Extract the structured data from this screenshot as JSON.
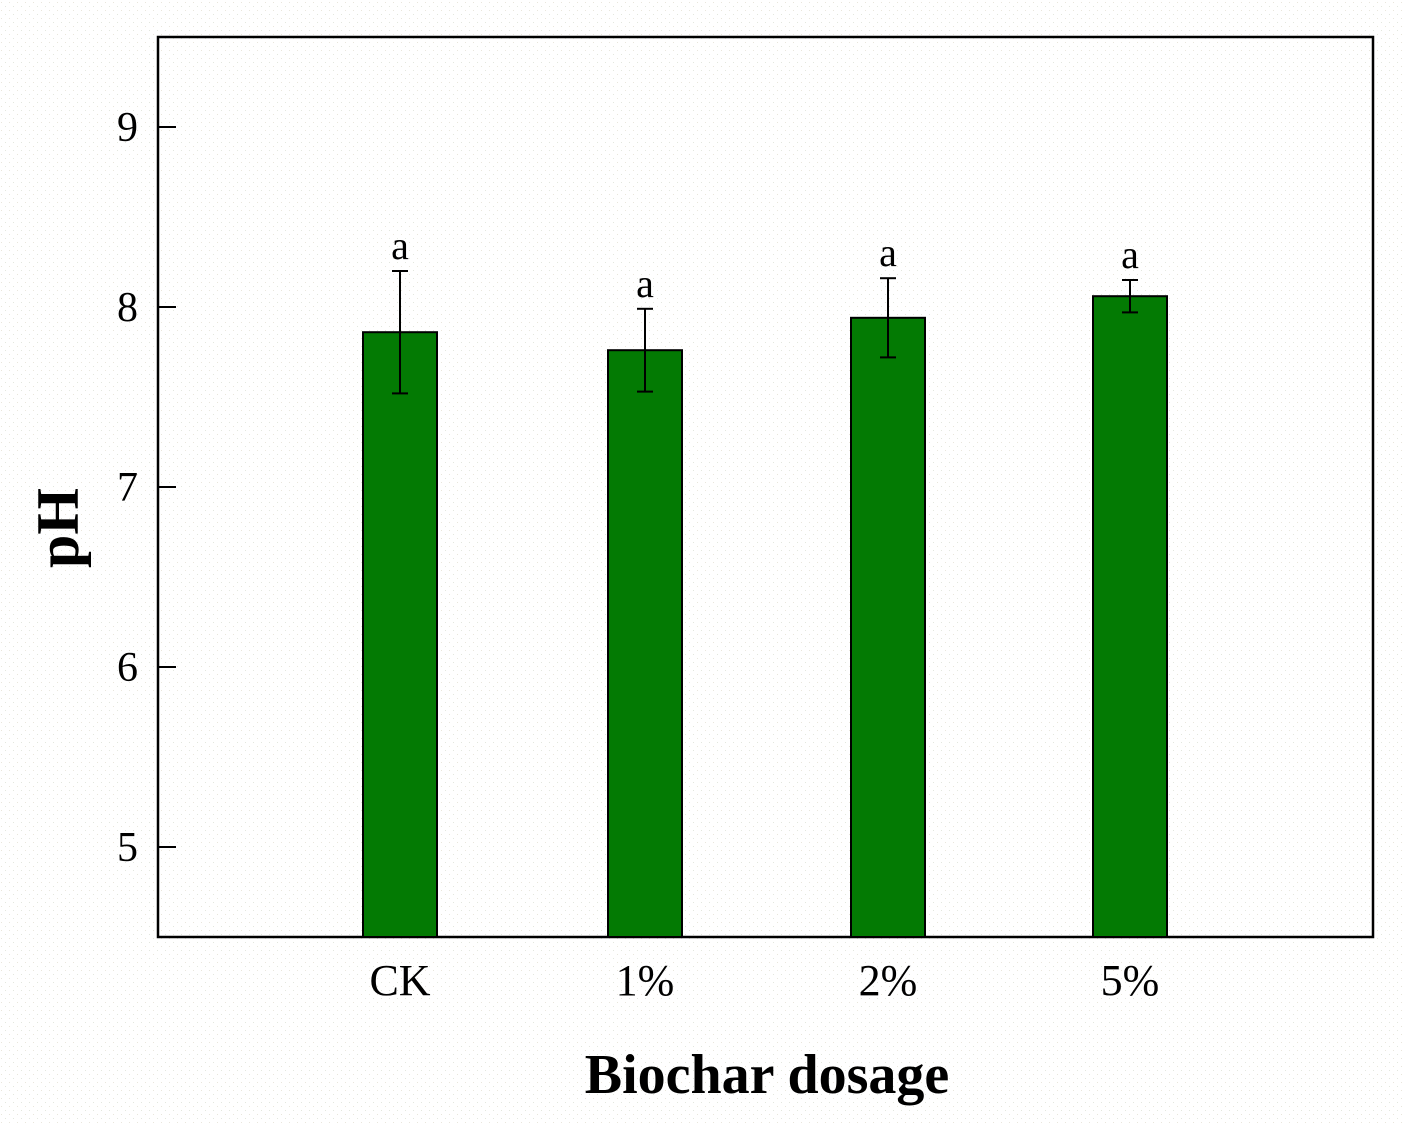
{
  "chart_data": {
    "type": "bar",
    "categories": [
      "CK",
      "1%",
      "2%",
      "5%"
    ],
    "series": [
      {
        "values": [
          7.86,
          7.76,
          7.94,
          8.06
        ],
        "errors": [
          0.34,
          0.23,
          0.22,
          0.09
        ],
        "color": "#037a03"
      }
    ],
    "significance_letters": [
      "a",
      "a",
      "a",
      "a"
    ],
    "xlabel": "Biochar dosage",
    "ylabel": "pH",
    "ylim": [
      4.5,
      9.5
    ],
    "yticks": [
      5,
      6,
      7,
      8,
      9
    ],
    "ytick_labels": [
      "5",
      "6",
      "7",
      "8",
      "9"
    ],
    "grid": false,
    "legend": "none"
  }
}
